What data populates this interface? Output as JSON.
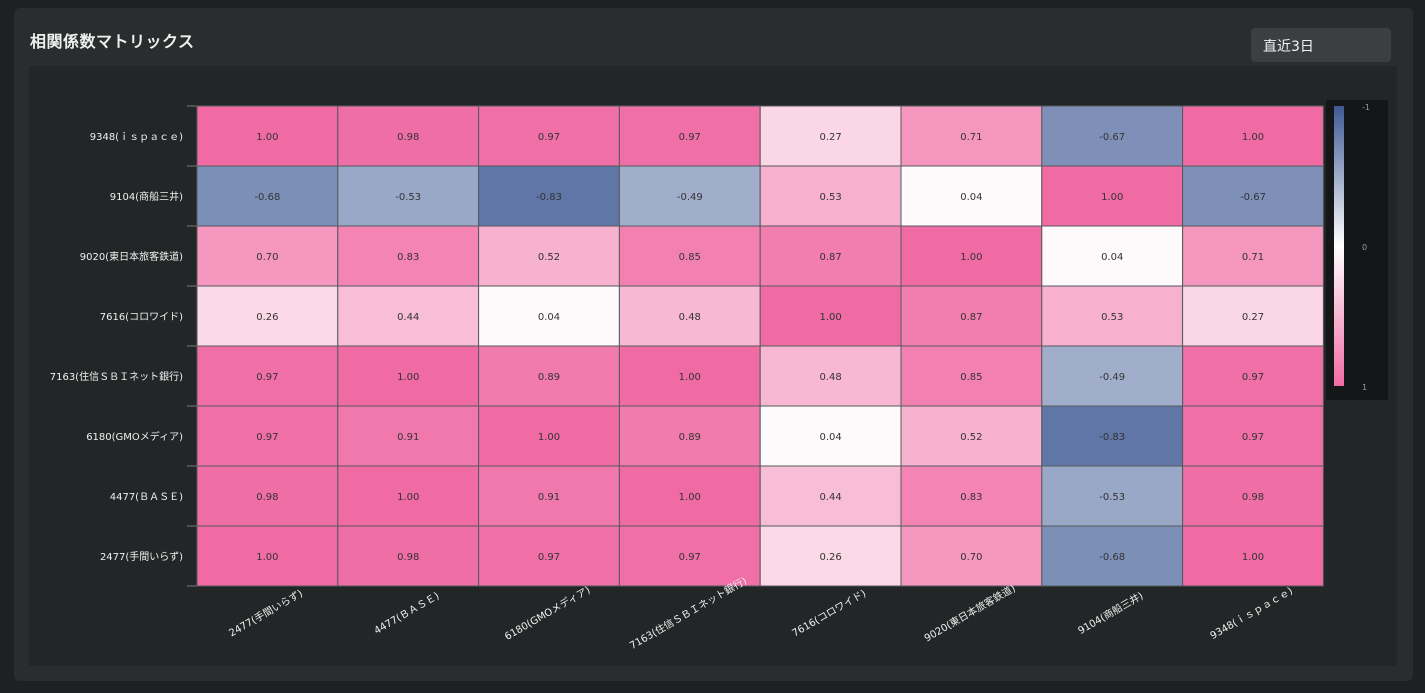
{
  "header": {
    "title": "相関係数マトリックス",
    "period_select": "直近3日"
  },
  "chart_data": {
    "type": "heatmap",
    "title": "相関係数マトリックス",
    "x_labels": [
      "2477(手間いらず)",
      "4477(BASE)",
      "6180(GMOメディア)",
      "7163(住信SBIネット銀行)",
      "7616(コロワイド)",
      "9020(東日本旅客鉄道)",
      "9104(商船三井)",
      "9348(ispace)"
    ],
    "y_labels": [
      "9348(ispace)",
      "9104(商船三井)",
      "9020(東日本旅客鉄道)",
      "7616(コロワイド)",
      "7163(住信SBIネット銀行)",
      "6180(GMOメディア)",
      "4477(BASE)",
      "2477(手間いらず)"
    ],
    "y_labels_display": [
      "9348(ｉｓｐａｃｅ)",
      "9104(商船三井)",
      "9020(東日本旅客鉄道)",
      "7616(コロワイド)",
      "7163(住信ＳＢＩネット銀行)",
      "6180(GMOメディア)",
      "4477(ＢＡＳＥ)",
      "2477(手間いらず)"
    ],
    "x_labels_display": [
      "2477(手間いらず)",
      "4477(ＢＡＳＥ)",
      "6180(GMOメディア)",
      "7163(住信ＳＢＩネット銀行)",
      "7616(コロワイド)",
      "9020(東日本旅客鉄道)",
      "9104(商船三井)",
      "9348(ｉｓｐａｃｅ)"
    ],
    "values": [
      [
        1.0,
        0.98,
        0.97,
        0.97,
        0.27,
        0.71,
        -0.67,
        1.0
      ],
      [
        -0.68,
        -0.53,
        -0.83,
        -0.49,
        0.53,
        0.04,
        1.0,
        -0.67
      ],
      [
        0.7,
        0.83,
        0.52,
        0.85,
        0.87,
        1.0,
        0.04,
        0.71
      ],
      [
        0.26,
        0.44,
        0.04,
        0.48,
        1.0,
        0.87,
        0.53,
        0.27
      ],
      [
        0.97,
        1.0,
        0.89,
        1.0,
        0.48,
        0.85,
        -0.49,
        0.97
      ],
      [
        0.97,
        0.91,
        1.0,
        0.89,
        0.04,
        0.52,
        -0.83,
        0.97
      ],
      [
        0.98,
        1.0,
        0.91,
        1.0,
        0.44,
        0.83,
        -0.53,
        0.98
      ],
      [
        1.0,
        0.98,
        0.97,
        0.97,
        0.26,
        0.7,
        -0.68,
        1.0
      ]
    ],
    "colorscale": {
      "min": -1,
      "max": 1,
      "ticks": [
        "-1",
        "0",
        "1"
      ],
      "negative_color": "#3f5a94",
      "zero_color": "#ffffff",
      "positive_color": "#f06ba4"
    }
  }
}
